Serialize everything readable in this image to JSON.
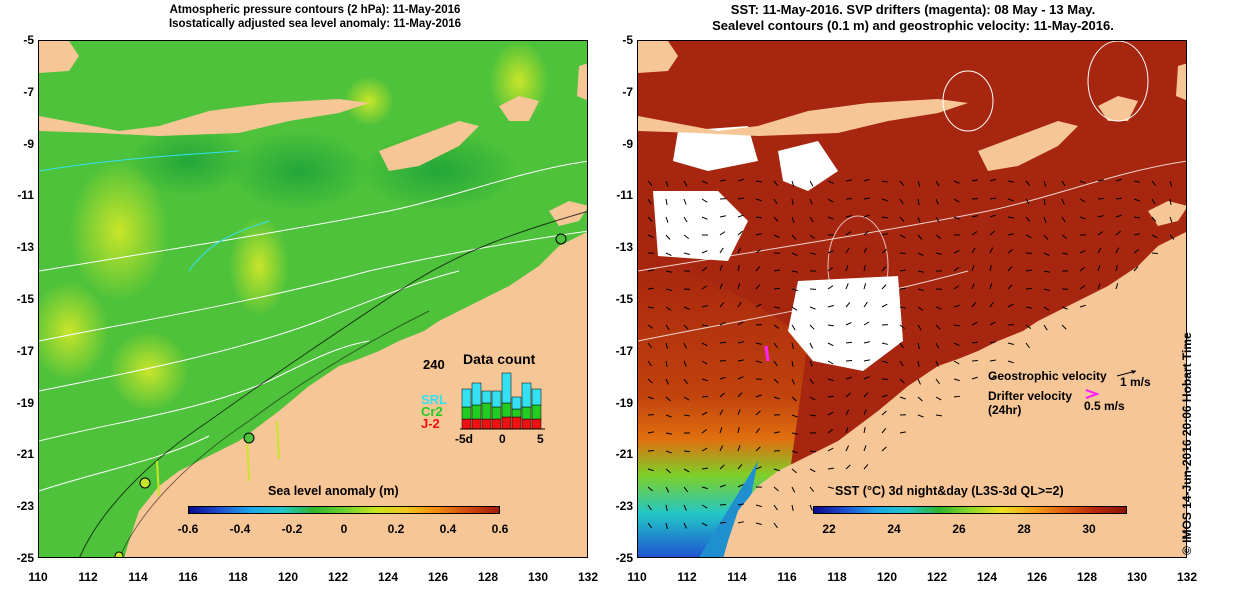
{
  "left_panel": {
    "title_line1": "Atmospheric pressure contours (2 hPa): 11-May-2016",
    "title_line2": "Isostatically adjusted sea level anomaly: 11-May-2016",
    "colorbar_title": "Sea level anomaly (m)",
    "colorbar_ticks": [
      "-0.6",
      "-0.4",
      "-0.2",
      "0",
      "0.2",
      "0.4",
      "0.6"
    ],
    "colorbar_colors": [
      "#0a0a8c",
      "#1f4fd0",
      "#1aa8e8",
      "#22c6c8",
      "#2fb52f",
      "#6cd12e",
      "#c7e51f",
      "#f3c51a",
      "#ef8a12",
      "#d24a0c",
      "#a11a08"
    ],
    "data_count": {
      "title": "Data count",
      "max_label": "240",
      "sat_labels": [
        "SRL",
        "Cr2",
        "J-2"
      ],
      "sat_colors": [
        "#33e1f2",
        "#22cc22",
        "#ee1111"
      ],
      "x_ticks": [
        "-5d",
        "0",
        "5"
      ]
    }
  },
  "right_panel": {
    "title_line1": "SST: 11-May-2016. SVP drifters (magenta): 08 May - 13 May.",
    "title_line2": "Sealevel contours (0.1 m) and geostrophic velocity: 11-May-2016.",
    "colorbar_title": "SST (°C) 3d night&day (L3S-3d QL>=2)",
    "colorbar_ticks": [
      "22",
      "24",
      "26",
      "28",
      "30"
    ],
    "colorbar_colors": [
      "#0a0a8c",
      "#1f4fd0",
      "#1aa8e8",
      "#22c6c8",
      "#2fb52f",
      "#8fd82a",
      "#f0e01f",
      "#f3a31a",
      "#e0600f",
      "#b8280a",
      "#8a1506"
    ],
    "legend": {
      "geo_label": "Geostrophic velocity",
      "geo_scale": "1 m/s",
      "drifter_label": "Drifter velocity",
      "drifter_sub": "(24hr)",
      "drifter_scale": "0.5 m/s"
    },
    "watermark": "© IMOS 14-Jun-2016 20:06 Hobart Time"
  },
  "axes": {
    "y_ticks": [
      "-5",
      "-7",
      "-9",
      "-11",
      "-13",
      "-15",
      "-17",
      "-19",
      "-21",
      "-23",
      "-25"
    ],
    "x_ticks": [
      "110",
      "112",
      "114",
      "116",
      "118",
      "120",
      "122",
      "124",
      "126",
      "128",
      "130",
      "132"
    ]
  },
  "colors": {
    "land": "#f7c697",
    "ocean_left": "#4ec23a",
    "ocean_right": "#a7260f",
    "contour": "#ffffff",
    "drifter": "#ff22ff"
  }
}
